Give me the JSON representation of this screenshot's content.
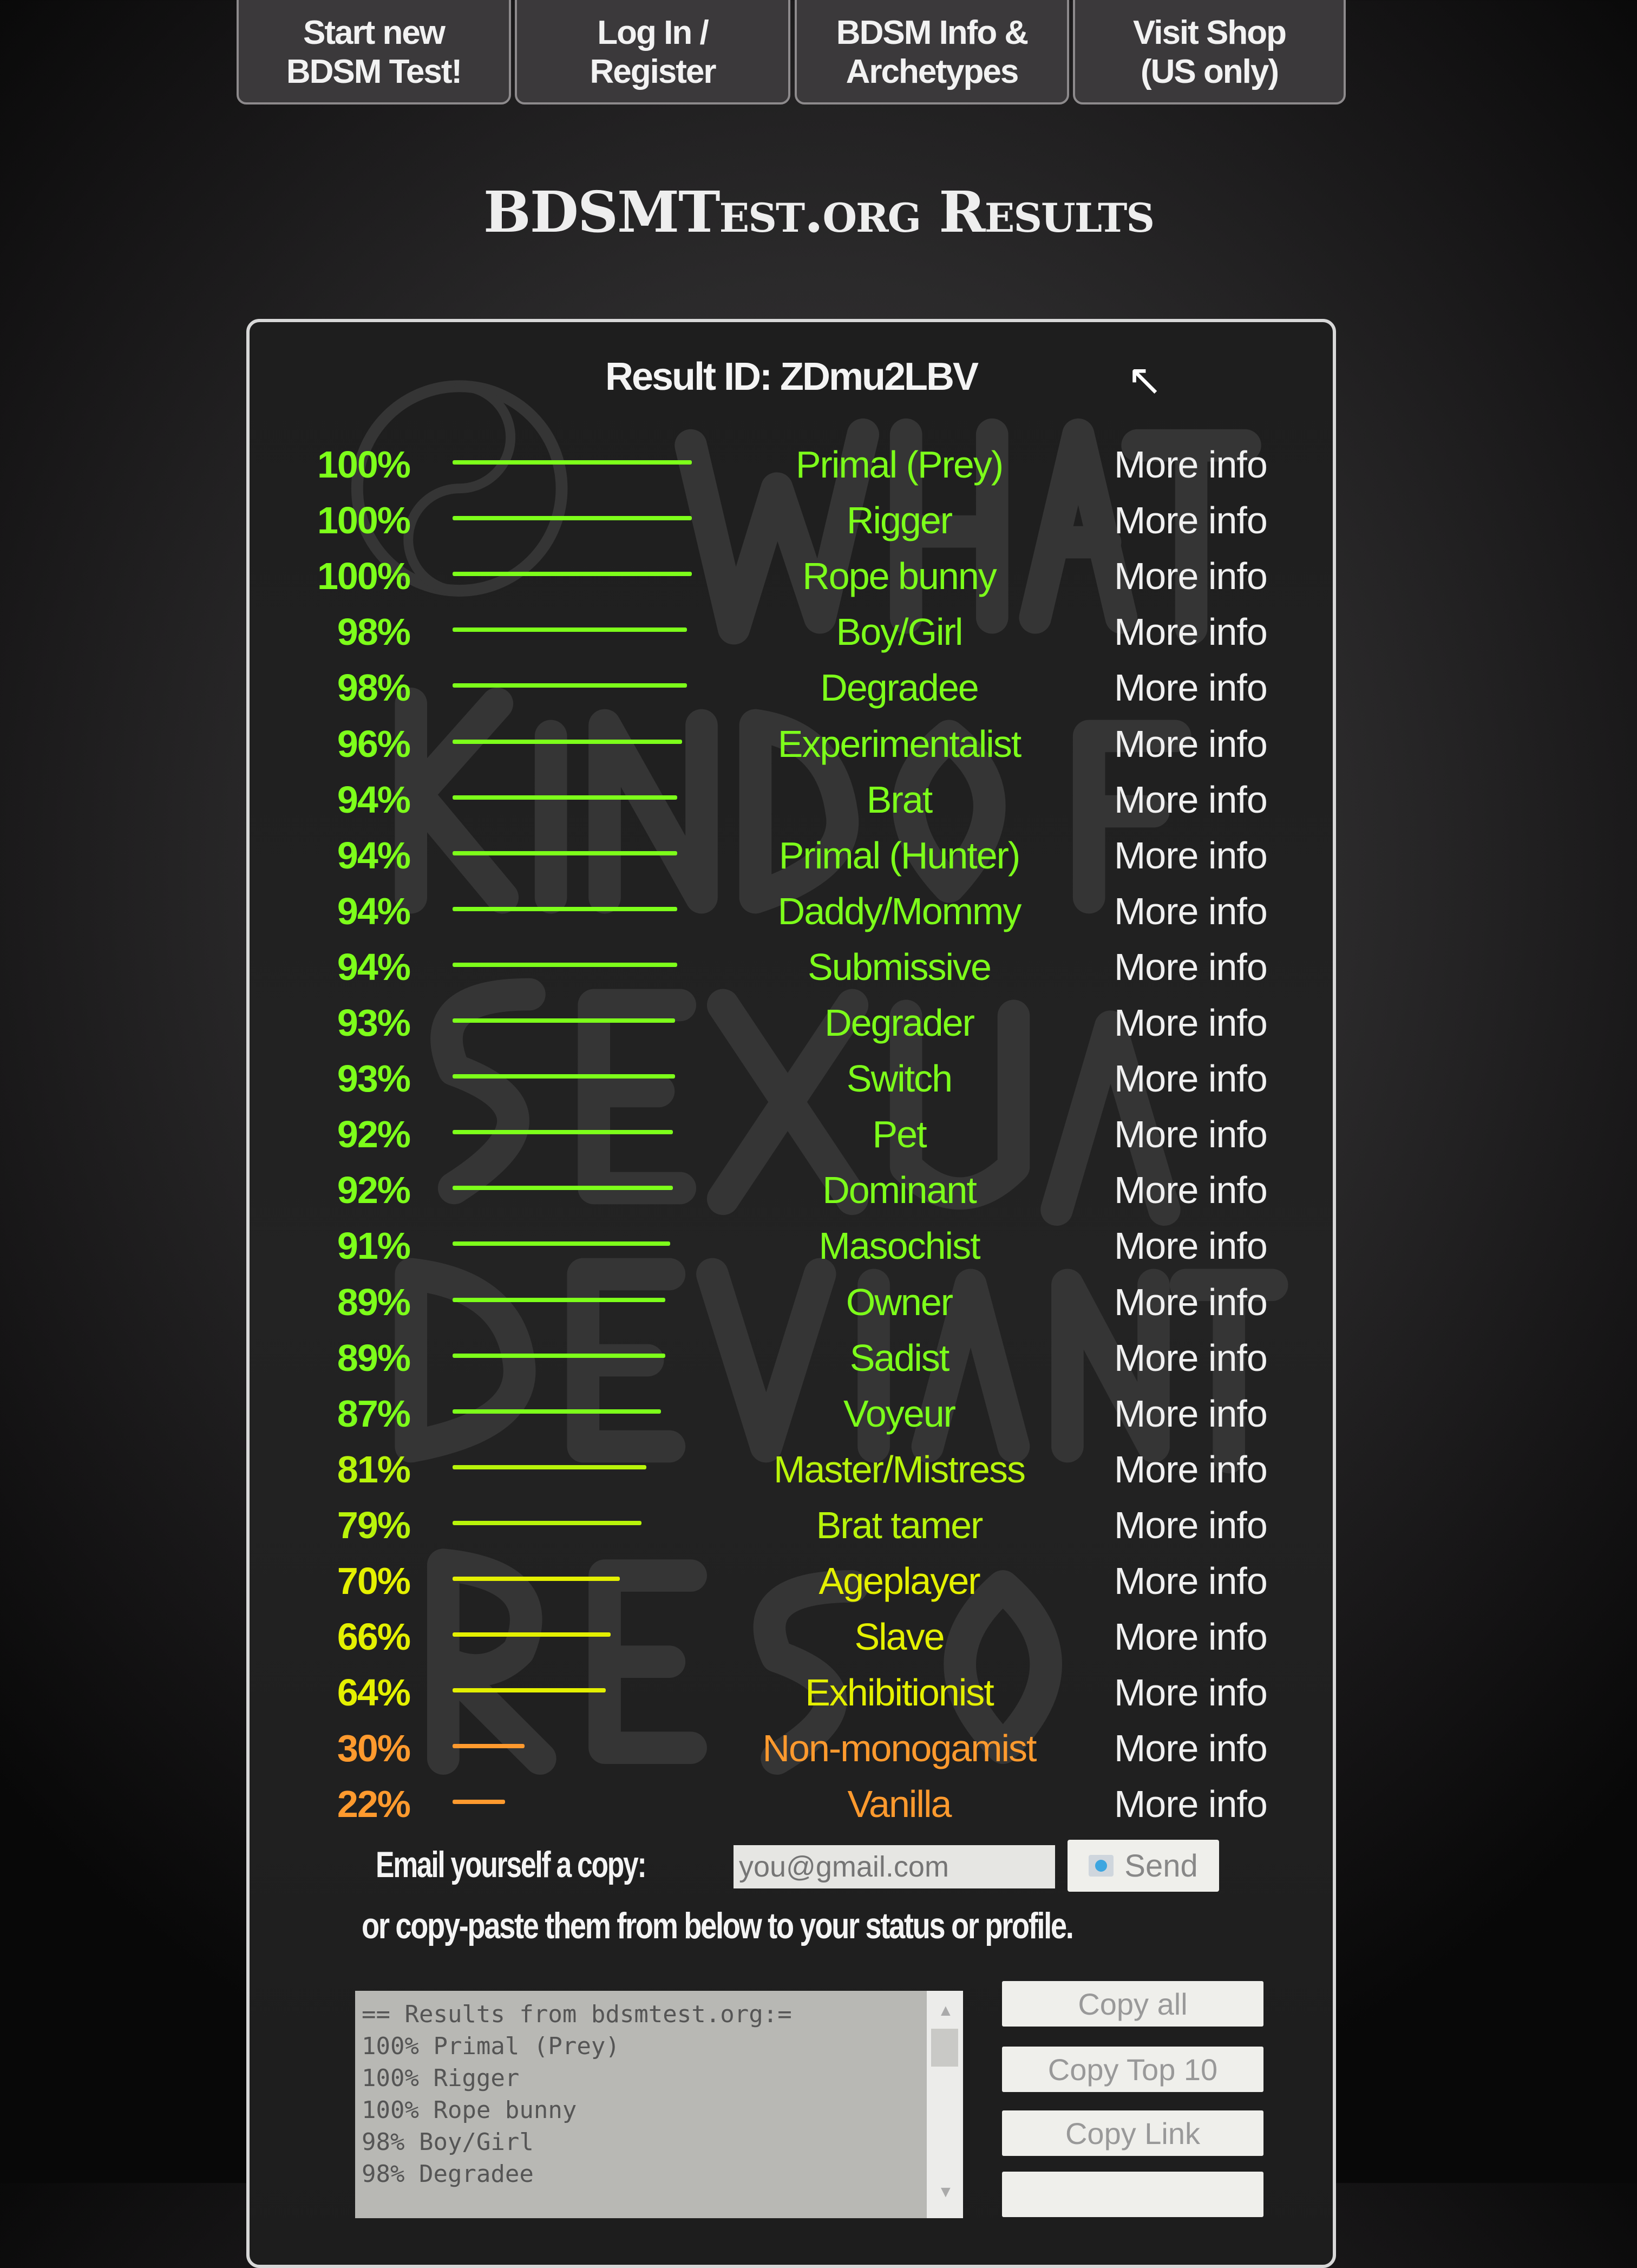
{
  "nav": [
    {
      "label_1": "Start new",
      "label_2": "BDSM Test!"
    },
    {
      "label_1": "Log In /",
      "label_2": "Register"
    },
    {
      "label_1": "BDSM Info &",
      "label_2": "Archetypes"
    },
    {
      "label_1": "Visit Shop",
      "label_2": "(US only)"
    }
  ],
  "page_title": "BDSMTest.org Results",
  "result_id": "Result ID: ZDmu2LBV",
  "watermark_text": "WHAT KIND OF SEXUAL DEVIANT RE...",
  "more_info_label": "More info",
  "colors": {
    "high": "#7dff1a",
    "mid": "#e4f000",
    "low": "#ff9a2e"
  },
  "results": [
    {
      "percent": 100,
      "label": "100%",
      "name": "Primal (Prey)"
    },
    {
      "percent": 100,
      "label": "100%",
      "name": "Rigger"
    },
    {
      "percent": 100,
      "label": "100%",
      "name": "Rope bunny"
    },
    {
      "percent": 98,
      "label": "98%",
      "name": "Boy/Girl"
    },
    {
      "percent": 98,
      "label": "98%",
      "name": "Degradee"
    },
    {
      "percent": 96,
      "label": "96%",
      "name": "Experimentalist"
    },
    {
      "percent": 94,
      "label": "94%",
      "name": "Brat"
    },
    {
      "percent": 94,
      "label": "94%",
      "name": "Primal (Hunter)"
    },
    {
      "percent": 94,
      "label": "94%",
      "name": "Daddy/Mommy"
    },
    {
      "percent": 94,
      "label": "94%",
      "name": "Submissive"
    },
    {
      "percent": 93,
      "label": "93%",
      "name": "Degrader"
    },
    {
      "percent": 93,
      "label": "93%",
      "name": "Switch"
    },
    {
      "percent": 92,
      "label": "92%",
      "name": "Pet"
    },
    {
      "percent": 92,
      "label": "92%",
      "name": "Dominant"
    },
    {
      "percent": 91,
      "label": "91%",
      "name": "Masochist"
    },
    {
      "percent": 89,
      "label": "89%",
      "name": "Owner"
    },
    {
      "percent": 89,
      "label": "89%",
      "name": "Sadist"
    },
    {
      "percent": 87,
      "label": "87%",
      "name": "Voyeur"
    },
    {
      "percent": 81,
      "label": "81%",
      "name": "Master/Mistress"
    },
    {
      "percent": 79,
      "label": "79%",
      "name": "Brat tamer"
    },
    {
      "percent": 70,
      "label": "70%",
      "name": "Ageplayer"
    },
    {
      "percent": 66,
      "label": "66%",
      "name": "Slave"
    },
    {
      "percent": 64,
      "label": "64%",
      "name": "Exhibitionist"
    },
    {
      "percent": 30,
      "label": "30%",
      "name": "Non-monogamist"
    },
    {
      "percent": 22,
      "label": "22%",
      "name": "Vanilla"
    }
  ],
  "email": {
    "label": "Email yourself a copy:",
    "placeholder": "you@gmail.com",
    "send_label": "Send",
    "send_icon": "email-icon"
  },
  "copy_note": "or copy-paste them from below to your status or profile.",
  "textarea_lines": [
    "== Results from bdsmtest.org:=",
    "100% Primal (Prey)",
    "100% Rigger",
    "100% Rope bunny",
    "98% Boy/Girl",
    "98% Degradee"
  ],
  "copy_buttons": [
    "Copy all",
    "Copy Top 10",
    "Copy Link"
  ]
}
